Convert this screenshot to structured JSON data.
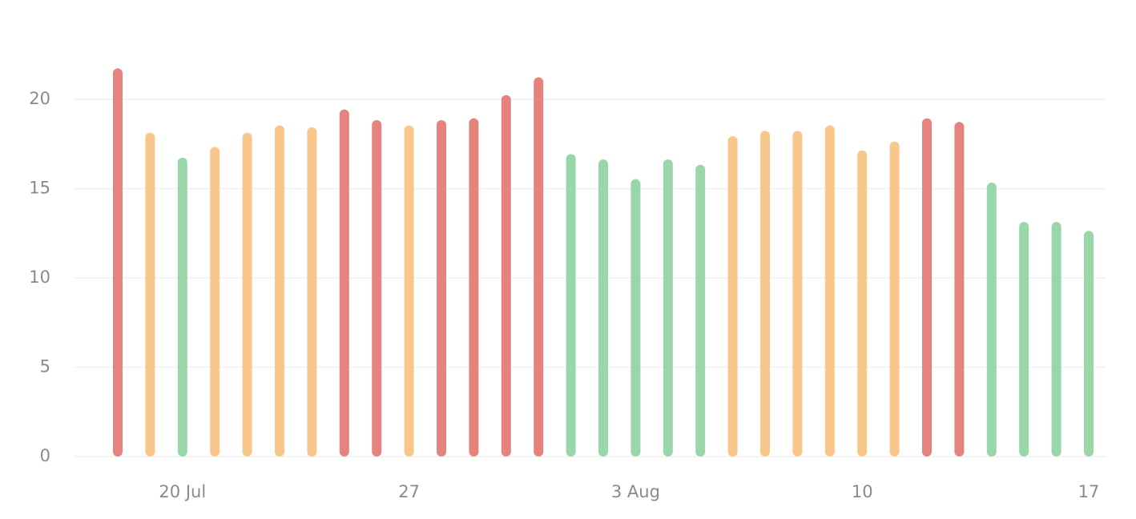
{
  "chart_data": {
    "type": "bar",
    "categories": [
      null,
      null,
      "20 Jul",
      null,
      null,
      null,
      null,
      null,
      null,
      "27",
      null,
      null,
      null,
      null,
      null,
      null,
      "3 Aug",
      null,
      null,
      null,
      null,
      null,
      null,
      "10",
      null,
      null,
      null,
      null,
      null,
      null,
      "17"
    ],
    "values": [
      21.6,
      18.0,
      16.6,
      17.2,
      18.0,
      18.4,
      18.3,
      19.3,
      18.7,
      18.4,
      18.7,
      18.8,
      20.1,
      21.1,
      16.8,
      16.5,
      15.4,
      16.5,
      16.2,
      17.8,
      18.1,
      18.1,
      18.4,
      17.0,
      17.5,
      18.8,
      18.6,
      15.2,
      13.0,
      13.0,
      12.5
    ],
    "colors": [
      "#e5847f",
      "#f7c78c",
      "#99d6a9",
      "#f7c78c",
      "#f7c78c",
      "#f7c78c",
      "#f7c78c",
      "#e5847f",
      "#e5847f",
      "#f7c78c",
      "#e5847f",
      "#e5847f",
      "#e5847f",
      "#e5847f",
      "#99d6a9",
      "#99d6a9",
      "#99d6a9",
      "#99d6a9",
      "#99d6a9",
      "#f7c78c",
      "#f7c78c",
      "#f7c78c",
      "#f7c78c",
      "#f7c78c",
      "#f7c78c",
      "#e5847f",
      "#e5847f",
      "#99d6a9",
      "#99d6a9",
      "#99d6a9",
      "#99d6a9"
    ],
    "ylim": [
      0,
      22
    ],
    "yticks": [
      0,
      5,
      10,
      15,
      20
    ],
    "grid": true
  }
}
